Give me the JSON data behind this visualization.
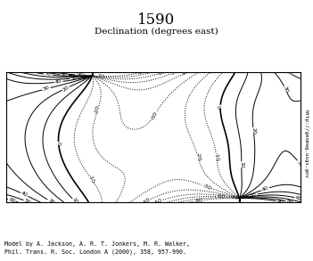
{
  "title_year": "1590",
  "title_sub": "Declination (degrees east)",
  "caption_line1": "Model by A. Jackson, A. R. T. Jonkers, M. R. Walker,",
  "caption_line2": "Phil. Trans. R. Soc. London A (2000), 358, 957-990.",
  "url_text": "http://geomag.usgs.gov",
  "bg_color": "#ffffff",
  "figsize": [
    3.51,
    2.93
  ],
  "dpi": 100,
  "lon_min": -180,
  "lon_max": 180,
  "lat_min": -80,
  "lat_max": 80,
  "contour_step": 10,
  "coast_color": "#aaaaaa",
  "contour_color": "#000000",
  "title_fontsize": 12,
  "sub_fontsize": 7.5,
  "caption_fontsize": 4.8,
  "url_fontsize": 4.2
}
